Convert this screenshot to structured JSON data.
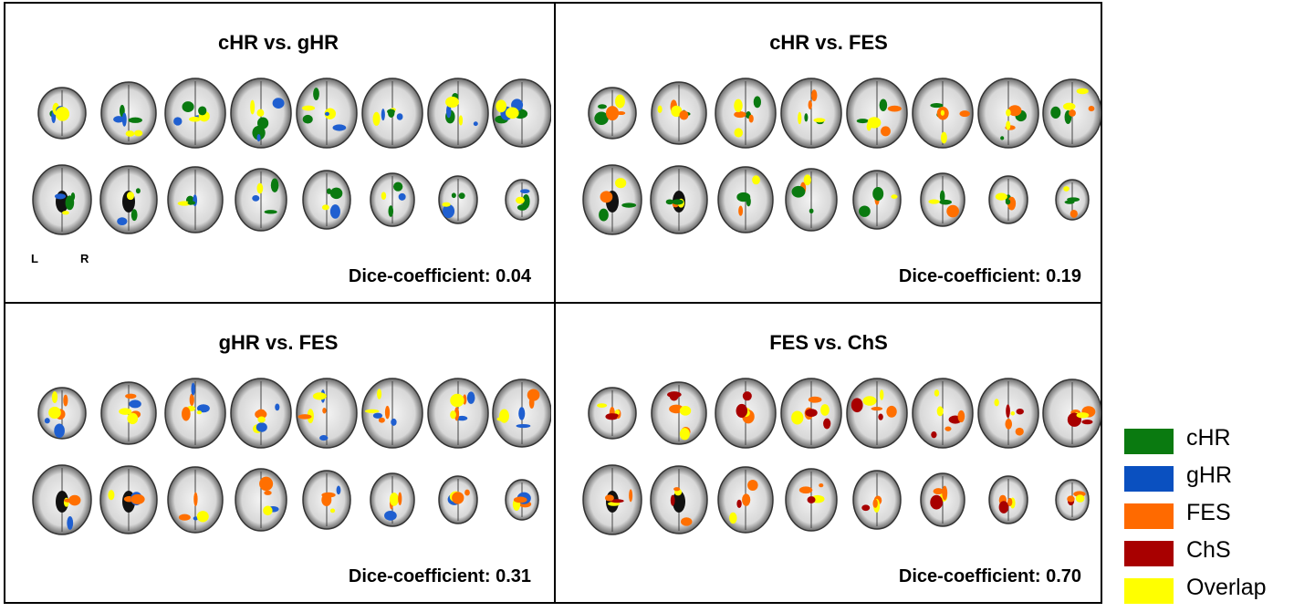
{
  "panels": [
    {
      "title": "cHR vs. gHR",
      "dice": "Dice-coefficient: 0.04",
      "colors": [
        "#0a7a10",
        "#1f5fd0",
        "#ffff00"
      ]
    },
    {
      "title": "cHR vs. FES",
      "dice": "Dice-coefficient: 0.19",
      "colors": [
        "#0a7a10",
        "#ff6f00",
        "#ffff00"
      ]
    },
    {
      "title": "gHR vs. FES",
      "dice": "Dice-coefficient: 0.31",
      "colors": [
        "#ff6f00",
        "#1f5fd0",
        "#ffff00"
      ]
    },
    {
      "title": "FES vs. ChS",
      "dice": "Dice-coefficient: 0.70",
      "colors": [
        "#ff6f00",
        "#ffff00",
        "#a80000"
      ]
    }
  ],
  "orientation": {
    "left": "L",
    "right": "R"
  },
  "legend": [
    {
      "label": "cHR",
      "color": "#0a7a10"
    },
    {
      "label": "gHR",
      "color": "#0a50c0"
    },
    {
      "label": "FES",
      "color": "#ff6a00"
    },
    {
      "label": "ChS",
      "color": "#a80000"
    },
    {
      "label": "Overlap",
      "color": "#ffff00"
    }
  ]
}
